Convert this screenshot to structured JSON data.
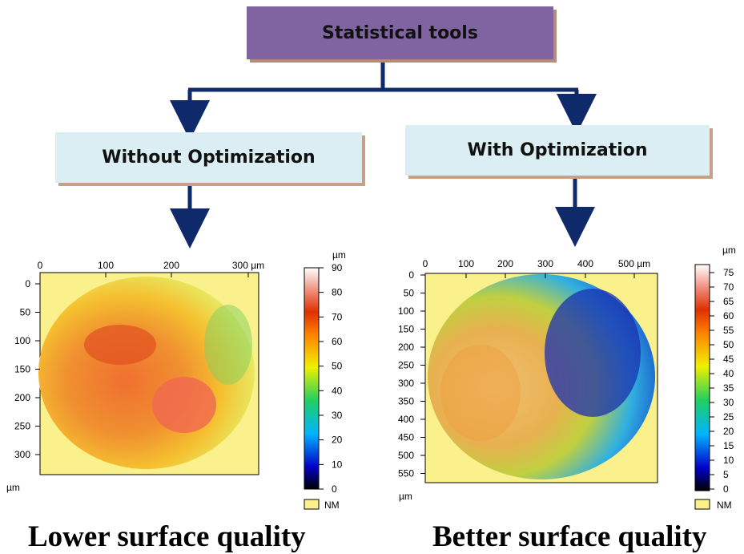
{
  "flow": {
    "root": "Statistical tools",
    "left_branch": "Without Optimization",
    "right_branch": "With Optimization"
  },
  "captions": {
    "left": "Lower surface quality",
    "right": "Better surface quality"
  },
  "left_map": {
    "x_ticks": [
      "0",
      "100",
      "200",
      "300 µm"
    ],
    "y_ticks": [
      "0",
      "50",
      "100",
      "150",
      "200",
      "250",
      "300"
    ],
    "y_unit": "µm",
    "scale_unit": "µm",
    "scale_ticks": [
      "90",
      "80",
      "70",
      "60",
      "50",
      "40",
      "30",
      "20",
      "10",
      "0"
    ],
    "nm_label": "NM"
  },
  "right_map": {
    "x_ticks": [
      "0",
      "100",
      "200",
      "300",
      "400",
      "500 µm"
    ],
    "y_ticks": [
      "0",
      "50",
      "100",
      "150",
      "200",
      "250",
      "300",
      "350",
      "400",
      "450",
      "500",
      "550"
    ],
    "y_unit": "µm",
    "scale_unit": "µm",
    "scale_ticks": [
      "75",
      "70",
      "65",
      "60",
      "55",
      "50",
      "45",
      "40",
      "35",
      "30",
      "25",
      "20",
      "15",
      "10",
      "5",
      "0"
    ],
    "nm_label": "NM"
  },
  "colors": {
    "root_fill": "#8064a2",
    "branch_fill": "#dbeef4",
    "arrow": "#0f2a6b",
    "background_map": "#fbf18c"
  }
}
